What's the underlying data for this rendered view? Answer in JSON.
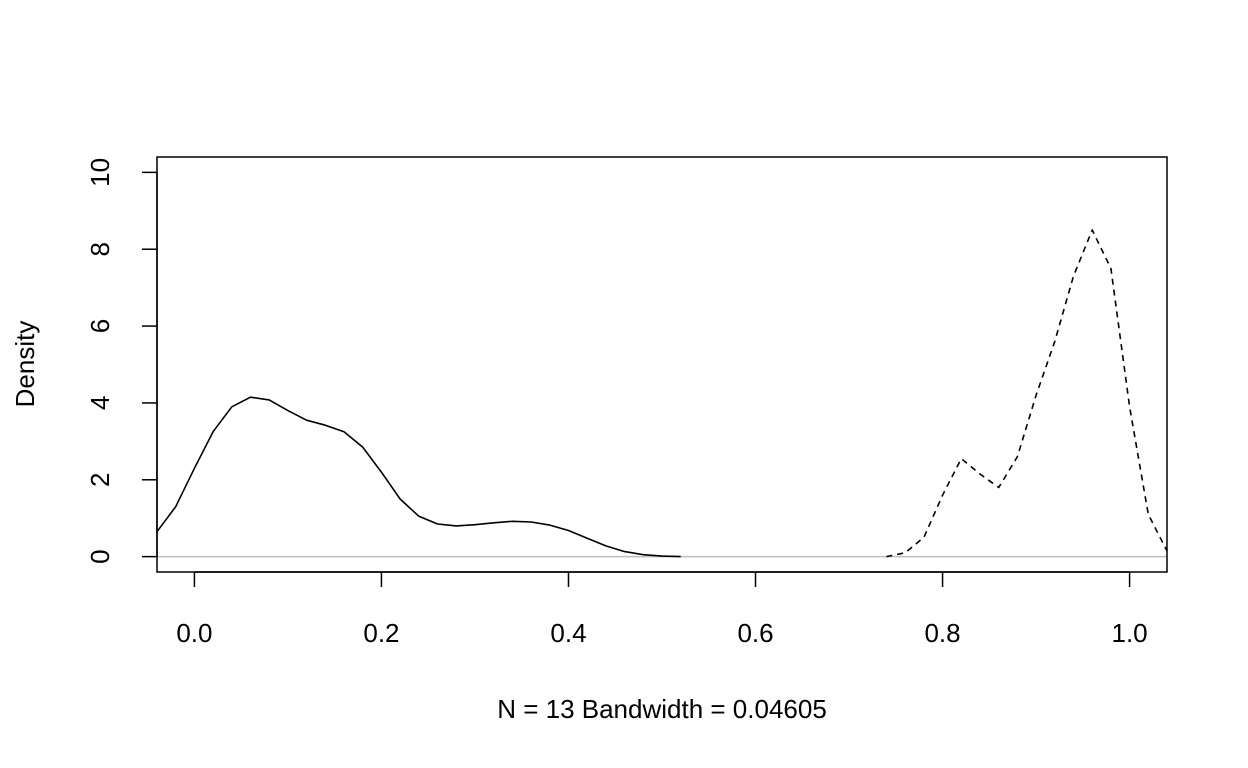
{
  "chart_data": {
    "type": "line",
    "title": "",
    "xlabel": "N = 13   Bandwidth = 0.04605",
    "ylabel": "Density",
    "xlim": [
      -0.04,
      1.04
    ],
    "ylim": [
      -0.4,
      10.4
    ],
    "x_ticks": [
      0.0,
      0.2,
      0.4,
      0.6,
      0.8,
      1.0
    ],
    "x_tick_labels": [
      "0.0",
      "0.2",
      "0.4",
      "0.6",
      "0.8",
      "1.0"
    ],
    "y_ticks": [
      0,
      2,
      4,
      6,
      8,
      10
    ],
    "y_tick_labels": [
      "0",
      "2",
      "4",
      "6",
      "8",
      "10"
    ],
    "grid": false,
    "legend": "none",
    "zero_line": {
      "y": 0,
      "color": "#bebebe"
    },
    "series": [
      {
        "style": "solid",
        "color": "#000000",
        "points": [
          [
            -0.04,
            0.65
          ],
          [
            -0.02,
            1.3
          ],
          [
            0.0,
            2.3
          ],
          [
            0.02,
            3.25
          ],
          [
            0.04,
            3.9
          ],
          [
            0.06,
            4.15
          ],
          [
            0.08,
            4.08
          ],
          [
            0.1,
            3.8
          ],
          [
            0.12,
            3.55
          ],
          [
            0.14,
            3.42
          ],
          [
            0.16,
            3.25
          ],
          [
            0.18,
            2.85
          ],
          [
            0.2,
            2.2
          ],
          [
            0.22,
            1.5
          ],
          [
            0.24,
            1.05
          ],
          [
            0.26,
            0.85
          ],
          [
            0.28,
            0.8
          ],
          [
            0.3,
            0.83
          ],
          [
            0.32,
            0.88
          ],
          [
            0.34,
            0.92
          ],
          [
            0.36,
            0.9
          ],
          [
            0.38,
            0.82
          ],
          [
            0.4,
            0.68
          ],
          [
            0.42,
            0.48
          ],
          [
            0.44,
            0.28
          ],
          [
            0.46,
            0.13
          ],
          [
            0.48,
            0.05
          ],
          [
            0.5,
            0.015
          ],
          [
            0.52,
            0.0
          ]
        ]
      },
      {
        "style": "dashed",
        "color": "#000000",
        "points": [
          [
            0.74,
            0.0
          ],
          [
            0.76,
            0.1
          ],
          [
            0.78,
            0.5
          ],
          [
            0.8,
            1.6
          ],
          [
            0.82,
            2.55
          ],
          [
            0.84,
            2.15
          ],
          [
            0.86,
            1.8
          ],
          [
            0.88,
            2.6
          ],
          [
            0.9,
            4.2
          ],
          [
            0.92,
            5.6
          ],
          [
            0.94,
            7.3
          ],
          [
            0.96,
            8.5
          ],
          [
            0.98,
            7.5
          ],
          [
            1.0,
            3.9
          ],
          [
            1.02,
            1.1
          ],
          [
            1.04,
            0.15
          ]
        ]
      }
    ]
  }
}
